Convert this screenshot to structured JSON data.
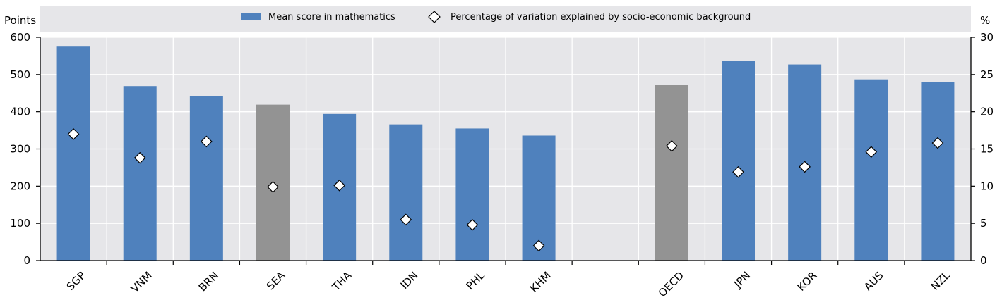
{
  "chart_data": {
    "type": "bar",
    "categories": [
      "SGP",
      "VNM",
      "BRN",
      "SEA",
      "THA",
      "IDN",
      "PHL",
      "KHM",
      "",
      "OECD",
      "JPN",
      "KOR",
      "AUS",
      "NZL"
    ],
    "series": [
      {
        "name": "Mean score in mathematics",
        "axis": "left",
        "values": [
          575,
          469,
          442,
          419,
          394,
          366,
          355,
          336,
          null,
          472,
          536,
          527,
          487,
          479
        ],
        "highlight": [
          "SEA",
          "OECD"
        ]
      },
      {
        "name": "Percentage of variation explained by socio-economic background",
        "axis": "right",
        "marker": "diamond",
        "values": [
          17.0,
          13.8,
          16.0,
          9.9,
          10.1,
          5.5,
          4.8,
          2.0,
          null,
          15.4,
          11.9,
          12.6,
          14.6,
          15.8
        ]
      }
    ],
    "ylabel_left": "Points",
    "ylabel_right": "%",
    "ylim_left": [
      0,
      600
    ],
    "ylim_right": [
      0,
      30
    ],
    "yticks_left": [
      "0",
      "100",
      "200",
      "300",
      "400",
      "500",
      "600"
    ],
    "yticks_right": [
      "0",
      "5",
      "10",
      "15",
      "20",
      "25",
      "30"
    ],
    "legend_position": "top",
    "colors": {
      "bar": "#4f81bd",
      "bar_highlight": "#939393",
      "plot_background": "#e6e6e9",
      "legend_background": "#e6e6e9",
      "gridline": "#ffffff",
      "diamond_fill": "#ffffff",
      "diamond_stroke": "#000000"
    }
  }
}
